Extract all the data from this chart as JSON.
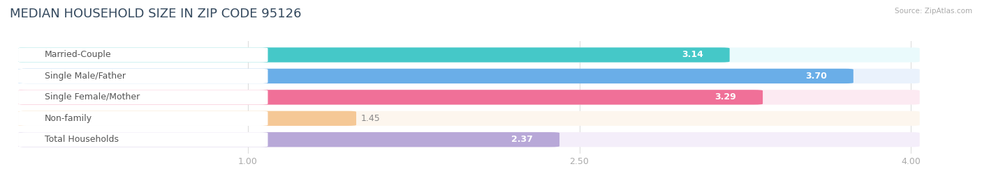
{
  "title": "MEDIAN HOUSEHOLD SIZE IN ZIP CODE 95126",
  "source": "Source: ZipAtlas.com",
  "categories": [
    "Married-Couple",
    "Single Male/Father",
    "Single Female/Mother",
    "Non-family",
    "Total Households"
  ],
  "values": [
    3.14,
    3.7,
    3.29,
    1.45,
    2.37
  ],
  "bar_colors": [
    "#45c8c8",
    "#6aaee8",
    "#f07098",
    "#f5c896",
    "#b8a8d8"
  ],
  "bar_bg_colors": [
    "#eafafc",
    "#eaf2fc",
    "#fceaf2",
    "#fdf6ee",
    "#f4eefa"
  ],
  "value_colors": [
    "white",
    "white",
    "white",
    "#888888",
    "#888888"
  ],
  "xlim_data": [
    0.0,
    4.3
  ],
  "xmin": 0.0,
  "xmax": 4.0,
  "xticks": [
    1.0,
    2.5,
    4.0
  ],
  "title_fontsize": 13,
  "label_fontsize": 9,
  "value_fontsize": 9,
  "bar_height": 0.62,
  "background_color": "#ffffff",
  "title_color": "#34495e"
}
